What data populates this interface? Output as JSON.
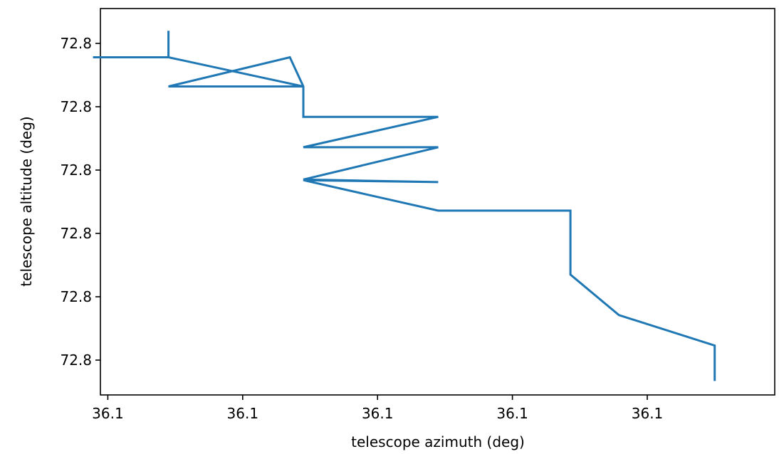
{
  "chart_data": {
    "type": "line",
    "title": "",
    "xlabel": "telescope azimuth (deg)",
    "ylabel": "telescope altitude (deg)",
    "xlim": [
      -0.055,
      4.945
    ],
    "ylim": [
      -0.55,
      5.55
    ],
    "x_ticks": [
      0,
      1,
      2,
      3,
      4
    ],
    "x_tick_labels": [
      "36.1",
      "36.1",
      "36.1",
      "36.1",
      "36.1"
    ],
    "y_ticks": [
      0,
      1,
      2,
      3,
      4,
      5
    ],
    "y_tick_labels": [
      "72.8",
      "72.8",
      "72.8",
      "72.8",
      "72.8",
      "72.8"
    ],
    "grid": false,
    "color": "#1f77b4",
    "series": [
      {
        "x": [
          0.45,
          0.45,
          -0.11,
          0.45,
          1.45,
          0.45,
          1.35,
          1.45,
          1.45,
          2.45,
          1.45,
          2.45,
          1.45,
          2.45,
          1.45,
          2.45,
          2.86,
          2.45,
          3.43,
          3.43,
          3.79,
          4.5,
          4.5
        ],
        "y": [
          5.2,
          4.78,
          4.78,
          4.78,
          4.32,
          4.32,
          4.78,
          4.32,
          3.84,
          3.84,
          3.36,
          3.36,
          2.85,
          2.81,
          2.84,
          2.36,
          2.36,
          2.36,
          2.36,
          1.35,
          0.71,
          0.23,
          -0.33
        ]
      }
    ]
  }
}
